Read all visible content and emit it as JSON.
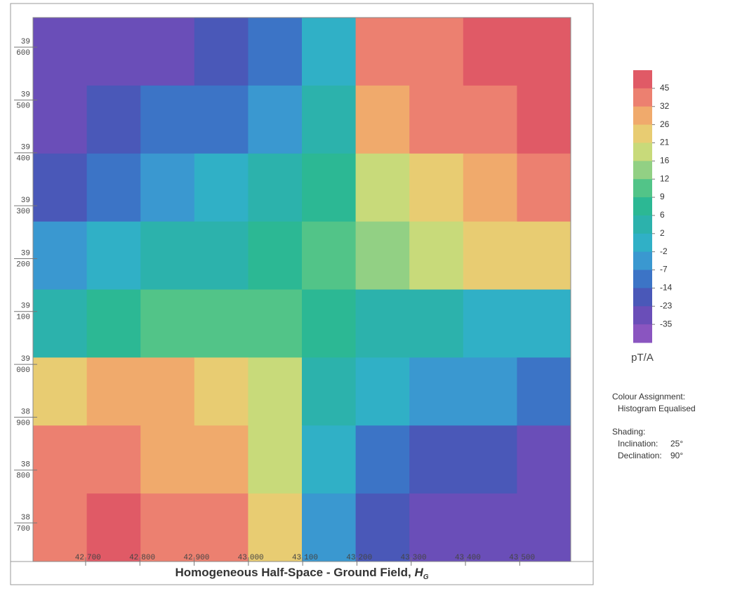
{
  "title": "Homogeneous Half-Space - Ground Field, ",
  "title_symbol": "H",
  "title_subscript": "G",
  "map": {
    "xlim": [
      42603,
      43594
    ],
    "ylim": [
      38627,
      39656
    ],
    "xticks": [
      {
        "value": 42700,
        "upper": "42",
        "lower": "700"
      },
      {
        "value": 42800,
        "upper": "42",
        "lower": "800"
      },
      {
        "value": 42900,
        "upper": "42",
        "lower": "900"
      },
      {
        "value": 43000,
        "upper": "43",
        "lower": "000"
      },
      {
        "value": 43100,
        "upper": "43",
        "lower": "100"
      },
      {
        "value": 43200,
        "upper": "43",
        "lower": "200"
      },
      {
        "value": 43300,
        "upper": "43",
        "lower": "300"
      },
      {
        "value": 43400,
        "upper": "43",
        "lower": "400"
      },
      {
        "value": 43500,
        "upper": "43",
        "lower": "500"
      }
    ],
    "yticks": [
      {
        "value": 39600,
        "upper": "39",
        "lower": "600"
      },
      {
        "value": 39500,
        "upper": "39",
        "lower": "500"
      },
      {
        "value": 39400,
        "upper": "39",
        "lower": "400"
      },
      {
        "value": 39300,
        "upper": "39",
        "lower": "300"
      },
      {
        "value": 39200,
        "upper": "39",
        "lower": "200"
      },
      {
        "value": 39100,
        "upper": "39",
        "lower": "100"
      },
      {
        "value": 39000,
        "upper": "39",
        "lower": "000"
      },
      {
        "value": 38900,
        "upper": "38",
        "lower": "900"
      },
      {
        "value": 38800,
        "upper": "38",
        "lower": "800"
      },
      {
        "value": 38700,
        "upper": "38",
        "lower": "700"
      }
    ],
    "values": [
      [
        -35,
        -35,
        -30,
        -23,
        -14,
        -2,
        32,
        40,
        45,
        45
      ],
      [
        -30,
        -23,
        -14,
        -14,
        -7,
        2,
        26,
        32,
        40,
        45
      ],
      [
        -23,
        -14,
        -7,
        -2,
        2,
        6,
        16,
        21,
        26,
        32
      ],
      [
        -7,
        -2,
        2,
        2,
        6,
        9,
        12,
        16,
        21,
        21
      ],
      [
        2,
        6,
        9,
        9,
        9,
        6,
        2,
        2,
        -2,
        -2
      ],
      [
        21,
        26,
        26,
        21,
        16,
        2,
        -2,
        -7,
        -7,
        -14
      ],
      [
        32,
        32,
        26,
        26,
        16,
        -2,
        -14,
        -23,
        -23,
        -30
      ],
      [
        40,
        45,
        40,
        32,
        21,
        -7,
        -23,
        -30,
        -35,
        -35
      ]
    ]
  },
  "colorbar": {
    "labels": [
      45,
      32,
      26,
      21,
      16,
      12,
      9,
      6,
      2,
      -2,
      -7,
      -14,
      -23,
      -35
    ],
    "colors": [
      "#e05a66",
      "#ec8070",
      "#f0aa6c",
      "#e8cc72",
      "#c8da7a",
      "#92d084",
      "#52c488",
      "#2cb894",
      "#2cb2ac",
      "#30b0c6",
      "#3a98d0",
      "#3c74c6",
      "#4a58b8",
      "#6a4eb8",
      "#8a55c0"
    ],
    "unit": "pT/A"
  },
  "notes": {
    "colour_assignment": "Colour Assignment:",
    "method": "Histogram Equalised",
    "shading": "Shading:",
    "inclination_label": "Inclination:",
    "inclination": "25°",
    "declination_label": "Declination:",
    "declination": "90°"
  }
}
